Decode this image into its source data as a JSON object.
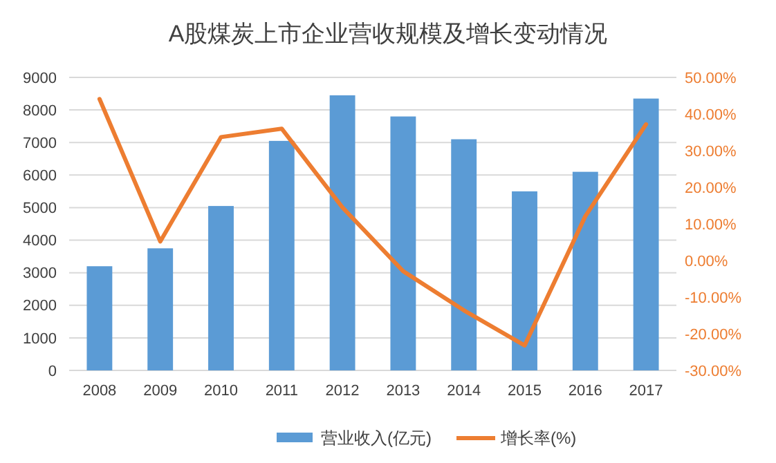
{
  "chart_data": {
    "type": "bar",
    "title": "A股煤炭上市企业营收规模及增长变动情况",
    "categories": [
      "2008",
      "2009",
      "2010",
      "2011",
      "2012",
      "2013",
      "2014",
      "2015",
      "2016",
      "2017"
    ],
    "series": [
      {
        "name": "营业收入(亿元)",
        "color": "#5b9bd5",
        "values": [
          3200,
          3750,
          5050,
          7050,
          8450,
          7800,
          7100,
          5500,
          6100,
          8350
        ]
      },
      {
        "name": "增长率(%)",
        "type": "line",
        "axis": "y2",
        "color": "#ed7d31",
        "values": [
          44.1,
          5.2,
          33.7,
          36.0,
          14.5,
          -2.9,
          -13.6,
          -23.2,
          12.1,
          37.2
        ]
      }
    ],
    "ylim": [
      0,
      9000
    ],
    "yticks": [
      0,
      1000,
      2000,
      3000,
      4000,
      5000,
      6000,
      7000,
      8000,
      9000
    ],
    "y2lim": [
      -30,
      50
    ],
    "y2ticks": [
      {
        "value": -30,
        "label": "-30.00%"
      },
      {
        "value": -20,
        "label": "-20.00%"
      },
      {
        "value": -10,
        "label": "-10.00%"
      },
      {
        "value": 0,
        "label": "0.00%"
      },
      {
        "value": 10,
        "label": "10.00%"
      },
      {
        "value": 20,
        "label": "20.00%"
      },
      {
        "value": 30,
        "label": "30.00%"
      },
      {
        "value": 40,
        "label": "40.00%"
      },
      {
        "value": 50,
        "label": "50.00%"
      }
    ],
    "grid": "y",
    "legend": "bottom",
    "marker": "none",
    "line_style": "solid"
  }
}
